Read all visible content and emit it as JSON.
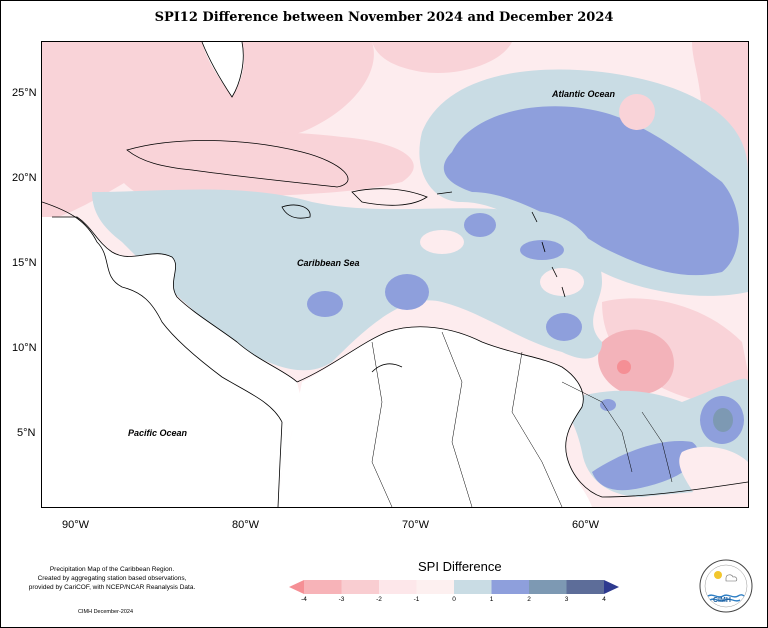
{
  "title": "SPI12 Difference between November 2024 and December 2024",
  "map": {
    "latitude_labels": [
      "25°N",
      "20°N",
      "15°N",
      "10°N",
      "5°N"
    ],
    "longitude_labels": [
      "90°W",
      "80°W",
      "70°W",
      "60°W"
    ],
    "labels": {
      "atlantic": "Atlantic Ocean",
      "caribbean": "Caribbean Sea",
      "pacific": "Pacific Ocean"
    }
  },
  "credits": {
    "line1": "Precipitation Map of the Caribbean Region.",
    "line2": "Created by aggregating station based observations,",
    "line3": "provided by CariCOF, with NCEP/NCAR Reanalysis Data.",
    "footer": "CIMH December-2024"
  },
  "legend": {
    "title": "SPI Difference",
    "ticks": [
      "-4",
      "-3",
      "-2",
      "-1",
      "0",
      "1",
      "2",
      "3",
      "4"
    ],
    "colors": [
      "#f58f95",
      "#f7b3b8",
      "#f9cdd1",
      "#fde7ea",
      "#fdf0f0",
      "#c9dce4",
      "#8e9fdc",
      "#7d99b3",
      "#5d6d99",
      "#2e3a8f"
    ]
  },
  "logo": {
    "text": "CIMH",
    "colors": {
      "sun": "#f2c62c",
      "waves": "#2d7ec4"
    }
  }
}
